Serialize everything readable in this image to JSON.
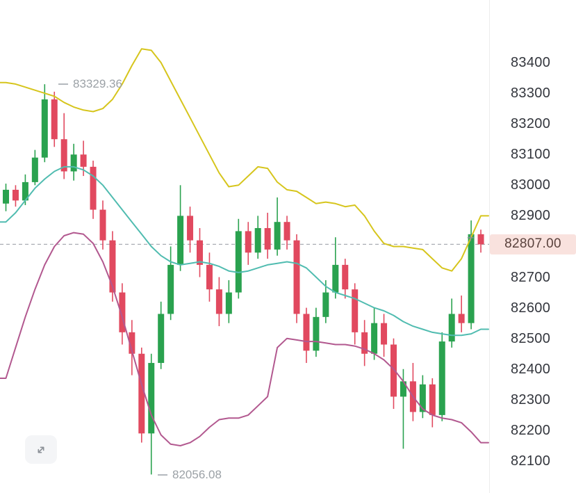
{
  "chart_labels": {
    "high_label": "83329.36",
    "low_label": "82056.08"
  },
  "price_axis": {
    "last_price_label": "82807.00",
    "tick_labels": [
      "83400",
      "83300",
      "83200",
      "83100",
      "83000",
      "82900",
      "82700",
      "82600",
      "82500",
      "82400",
      "82300",
      "82200",
      "82100"
    ]
  },
  "icons": {
    "plus_marker": "+",
    "expand_icon": "expand-diagonal-arrows"
  },
  "chart_data": {
    "type": "candlestick",
    "title": "",
    "grid": false,
    "legend": "none",
    "instrument_last_price": 82807.0,
    "high_annotation": 83329.36,
    "low_annotation": 82056.08,
    "y_axis": {
      "visible_ticks": [
        83400,
        83300,
        83200,
        83100,
        83000,
        82900,
        82700,
        82600,
        82500,
        82400,
        82300,
        82200,
        82100
      ],
      "range": [
        82050,
        83500
      ]
    },
    "colors": {
      "up": "#2aa24f",
      "down": "#e1495f",
      "dashed_line": "#a9adb3",
      "badge_bg": "#f9e2de",
      "badge_text": "#5a423d",
      "upper_band": "#d6c51c",
      "middle_band": "#50bcb0",
      "lower_band": "#b2588f"
    },
    "candle_format": [
      "open",
      "high",
      "low",
      "close"
    ],
    "candles": [
      [
        82940,
        83005,
        82915,
        82985
      ],
      [
        82985,
        83000,
        82930,
        82950
      ],
      [
        82950,
        83035,
        82935,
        83010
      ],
      [
        83010,
        83115,
        83000,
        83090
      ],
      [
        83090,
        83329.36,
        83075,
        83280
      ],
      [
        83280,
        83305,
        83125,
        83150
      ],
      [
        83150,
        83235,
        83020,
        83045
      ],
      [
        83045,
        83135,
        83015,
        83100
      ],
      [
        83100,
        83145,
        83030,
        83060
      ],
      [
        83060,
        83080,
        82890,
        82920
      ],
      [
        82920,
        82950,
        82790,
        82820
      ],
      [
        82820,
        82850,
        82620,
        82650
      ],
      [
        82650,
        82680,
        82480,
        82520
      ],
      [
        82520,
        82560,
        82380,
        82450
      ],
      [
        82450,
        82470,
        82160,
        82190
      ],
      [
        82190,
        82450,
        82056.08,
        82420
      ],
      [
        82420,
        82620,
        82400,
        82580
      ],
      [
        82580,
        82800,
        82560,
        82740
      ],
      [
        82740,
        83000,
        82720,
        82900
      ],
      [
        82900,
        82930,
        82780,
        82820
      ],
      [
        82820,
        82860,
        82700,
        82740
      ],
      [
        82740,
        82780,
        82620,
        82660
      ],
      [
        82660,
        82700,
        82540,
        82580
      ],
      [
        82580,
        82690,
        82550,
        82650
      ],
      [
        82650,
        82890,
        82630,
        82850
      ],
      [
        82850,
        82880,
        82740,
        82780
      ],
      [
        82780,
        82900,
        82760,
        82860
      ],
      [
        82860,
        82910,
        82760,
        82790
      ],
      [
        82790,
        82960,
        82770,
        82880
      ],
      [
        82880,
        82900,
        82790,
        82820
      ],
      [
        82820,
        82840,
        82550,
        82580
      ],
      [
        82580,
        82600,
        82420,
        82460
      ],
      [
        82460,
        82600,
        82440,
        82570
      ],
      [
        82570,
        82690,
        82550,
        82650
      ],
      [
        82650,
        82830,
        82630,
        82740
      ],
      [
        82740,
        82760,
        82630,
        82660
      ],
      [
        82660,
        82680,
        82480,
        82520
      ],
      [
        82520,
        82560,
        82410,
        82450
      ],
      [
        82450,
        82600,
        82430,
        82550
      ],
      [
        82550,
        82580,
        82440,
        82480
      ],
      [
        82480,
        82500,
        82270,
        82310
      ],
      [
        82310,
        82400,
        82140,
        82360
      ],
      [
        82360,
        82420,
        82230,
        82260
      ],
      [
        82260,
        82380,
        82240,
        82350
      ],
      [
        82350,
        82370,
        82210,
        82250
      ],
      [
        82250,
        82520,
        82230,
        82490
      ],
      [
        82490,
        82630,
        82470,
        82580
      ],
      [
        82580,
        82640,
        82520,
        82550
      ],
      [
        82550,
        82885,
        82530,
        82840
      ],
      [
        82840,
        82855,
        82780,
        82807
      ]
    ],
    "overlays": [
      {
        "name": "upper-band",
        "color": "#d6c51c",
        "values": [
          83335,
          83330,
          83320,
          83310,
          83300,
          83290,
          83270,
          83255,
          83245,
          83240,
          83250,
          83280,
          83330,
          83390,
          83445,
          83440,
          83400,
          83340,
          83280,
          83220,
          83160,
          83100,
          83040,
          82995,
          83000,
          83030,
          83060,
          83055,
          83010,
          82985,
          82980,
          82960,
          82940,
          82945,
          82940,
          82930,
          82935,
          82900,
          82850,
          82810,
          82800,
          82800,
          82795,
          82790,
          82760,
          82730,
          82720,
          82760,
          82830,
          82900
        ]
      },
      {
        "name": "middle-band",
        "color": "#50bcb0",
        "values": [
          82880,
          82910,
          82950,
          82990,
          83020,
          83045,
          83060,
          83060,
          83050,
          83030,
          83000,
          82960,
          82920,
          82880,
          82840,
          82800,
          82770,
          82750,
          82740,
          82745,
          82750,
          82745,
          82735,
          82720,
          82715,
          82720,
          82730,
          82740,
          82745,
          82750,
          82745,
          82730,
          82700,
          82670,
          82650,
          82640,
          82630,
          82615,
          82600,
          82590,
          82575,
          82555,
          82540,
          82530,
          82520,
          82515,
          82510,
          82510,
          82515,
          82530
        ]
      },
      {
        "name": "lower-band",
        "color": "#b2588f",
        "values": [
          82370,
          82470,
          82570,
          82660,
          82740,
          82800,
          82835,
          82845,
          82840,
          82810,
          82750,
          82670,
          82570,
          82460,
          82350,
          82250,
          82185,
          82155,
          82150,
          82160,
          82180,
          82210,
          82235,
          82240,
          82240,
          82250,
          82280,
          82310,
          82470,
          82500,
          82495,
          82490,
          82490,
          82485,
          82480,
          82480,
          82475,
          82465,
          82450,
          82430,
          82400,
          82360,
          82310,
          82270,
          82250,
          82240,
          82235,
          82225,
          82195,
          82160
        ]
      }
    ]
  }
}
